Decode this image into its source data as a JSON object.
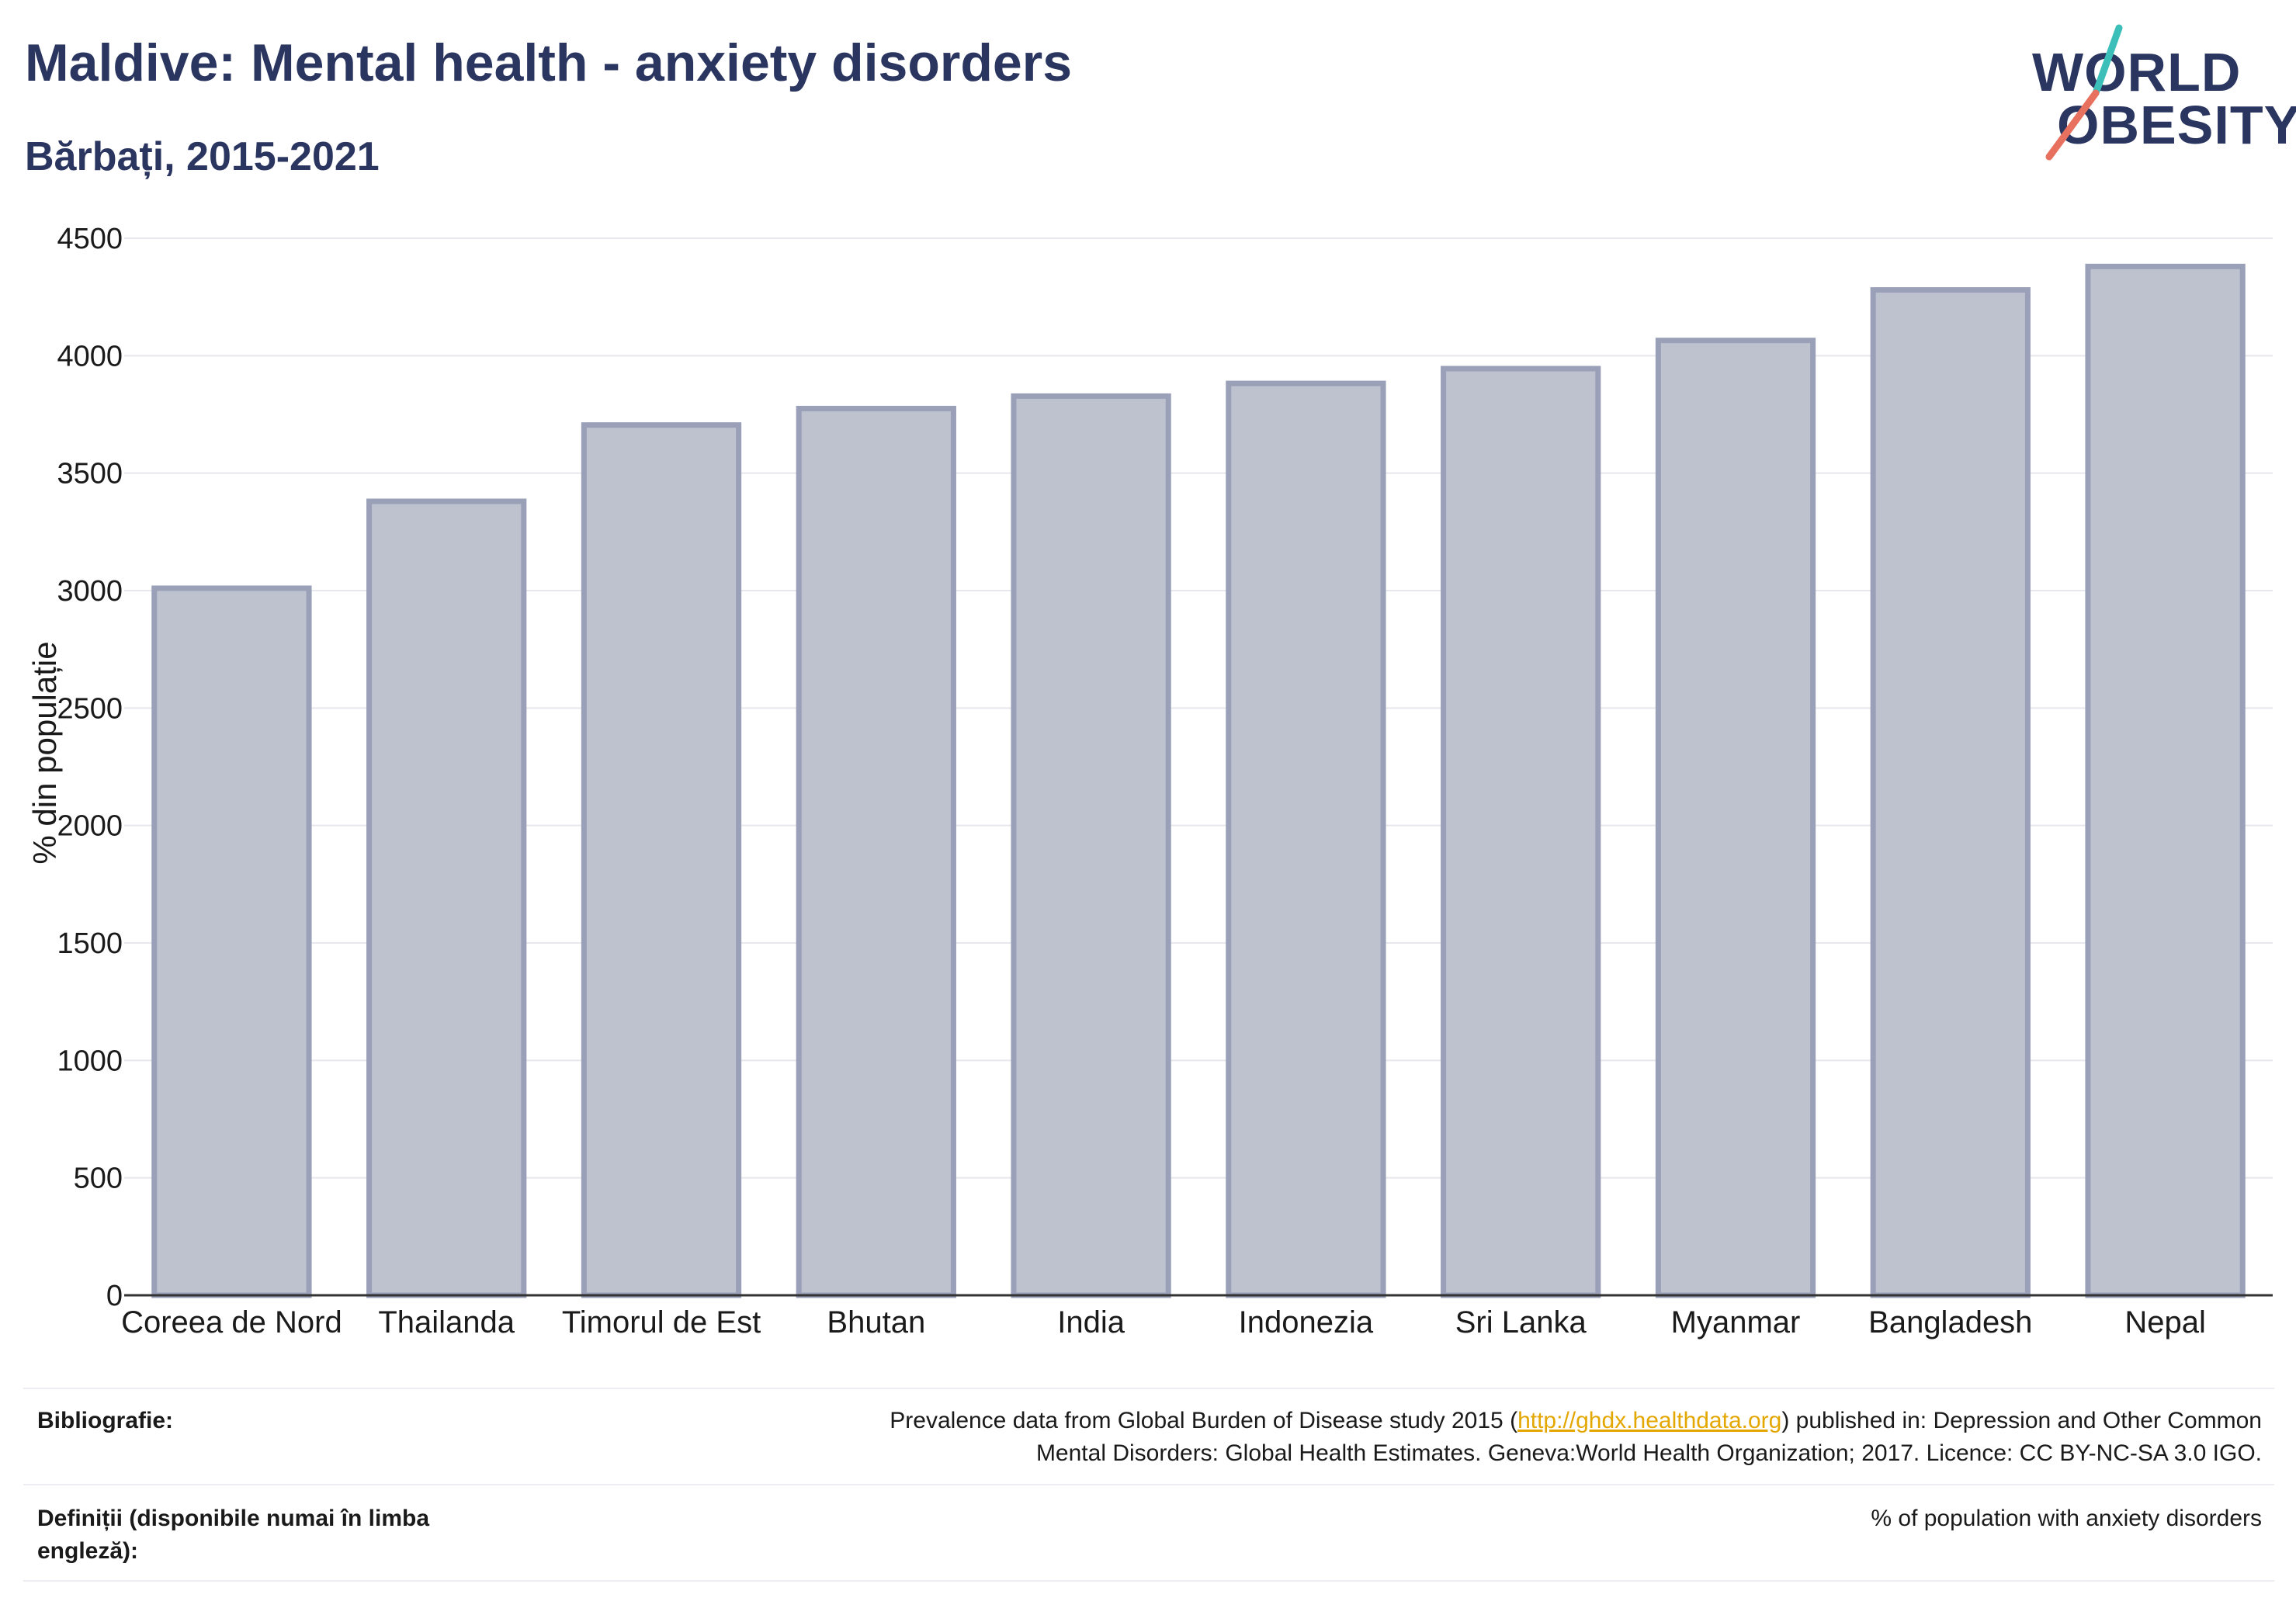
{
  "header": {
    "title": "Maldive: Mental health - anxiety disorders",
    "subtitle": "Bărbați, 2015-2021"
  },
  "logo": {
    "line1": "WORLD",
    "line2": "OBESITY",
    "accent_teal": "#3bbfb8",
    "accent_coral": "#e8705f",
    "color": "#2a3560"
  },
  "chart_data": {
    "type": "bar",
    "categories": [
      "Coreea de Nord",
      "Thailanda",
      "Timorul de Est",
      "Bhutan",
      "India",
      "Indonezia",
      "Sri Lanka",
      "Myanmar",
      "Bangladesh",
      "Nepal"
    ],
    "values": [
      3010,
      3380,
      3705,
      3775,
      3828,
      3882,
      3945,
      4065,
      4280,
      4380
    ],
    "ylabel": "% din populație",
    "ylim": [
      0,
      4500
    ],
    "yticks": [
      0,
      500,
      1000,
      1500,
      2000,
      2500,
      3000,
      3500,
      4000,
      4500
    ],
    "grid": true,
    "bar_fill": "#bec2cf",
    "bar_stroke": "#9aa0b8"
  },
  "footer": {
    "bibliography_label": "Bibliografie:",
    "bibliography_pre": "Prevalence data from Global Burden of Disease study 2015 (",
    "bibliography_link": "http://ghdx.healthdata.org",
    "bibliography_post": ") published in: Depression and Other Common",
    "bibliography_line2": "Mental Disorders: Global Health Estimates. Geneva:World Health Organization; 2017. Licence: CC BY-NC-SA 3.0 IGO.",
    "definitions_label": "Definiții (disponibile numai în limba engleză):",
    "definitions_text": "% of population with anxiety disorders"
  }
}
